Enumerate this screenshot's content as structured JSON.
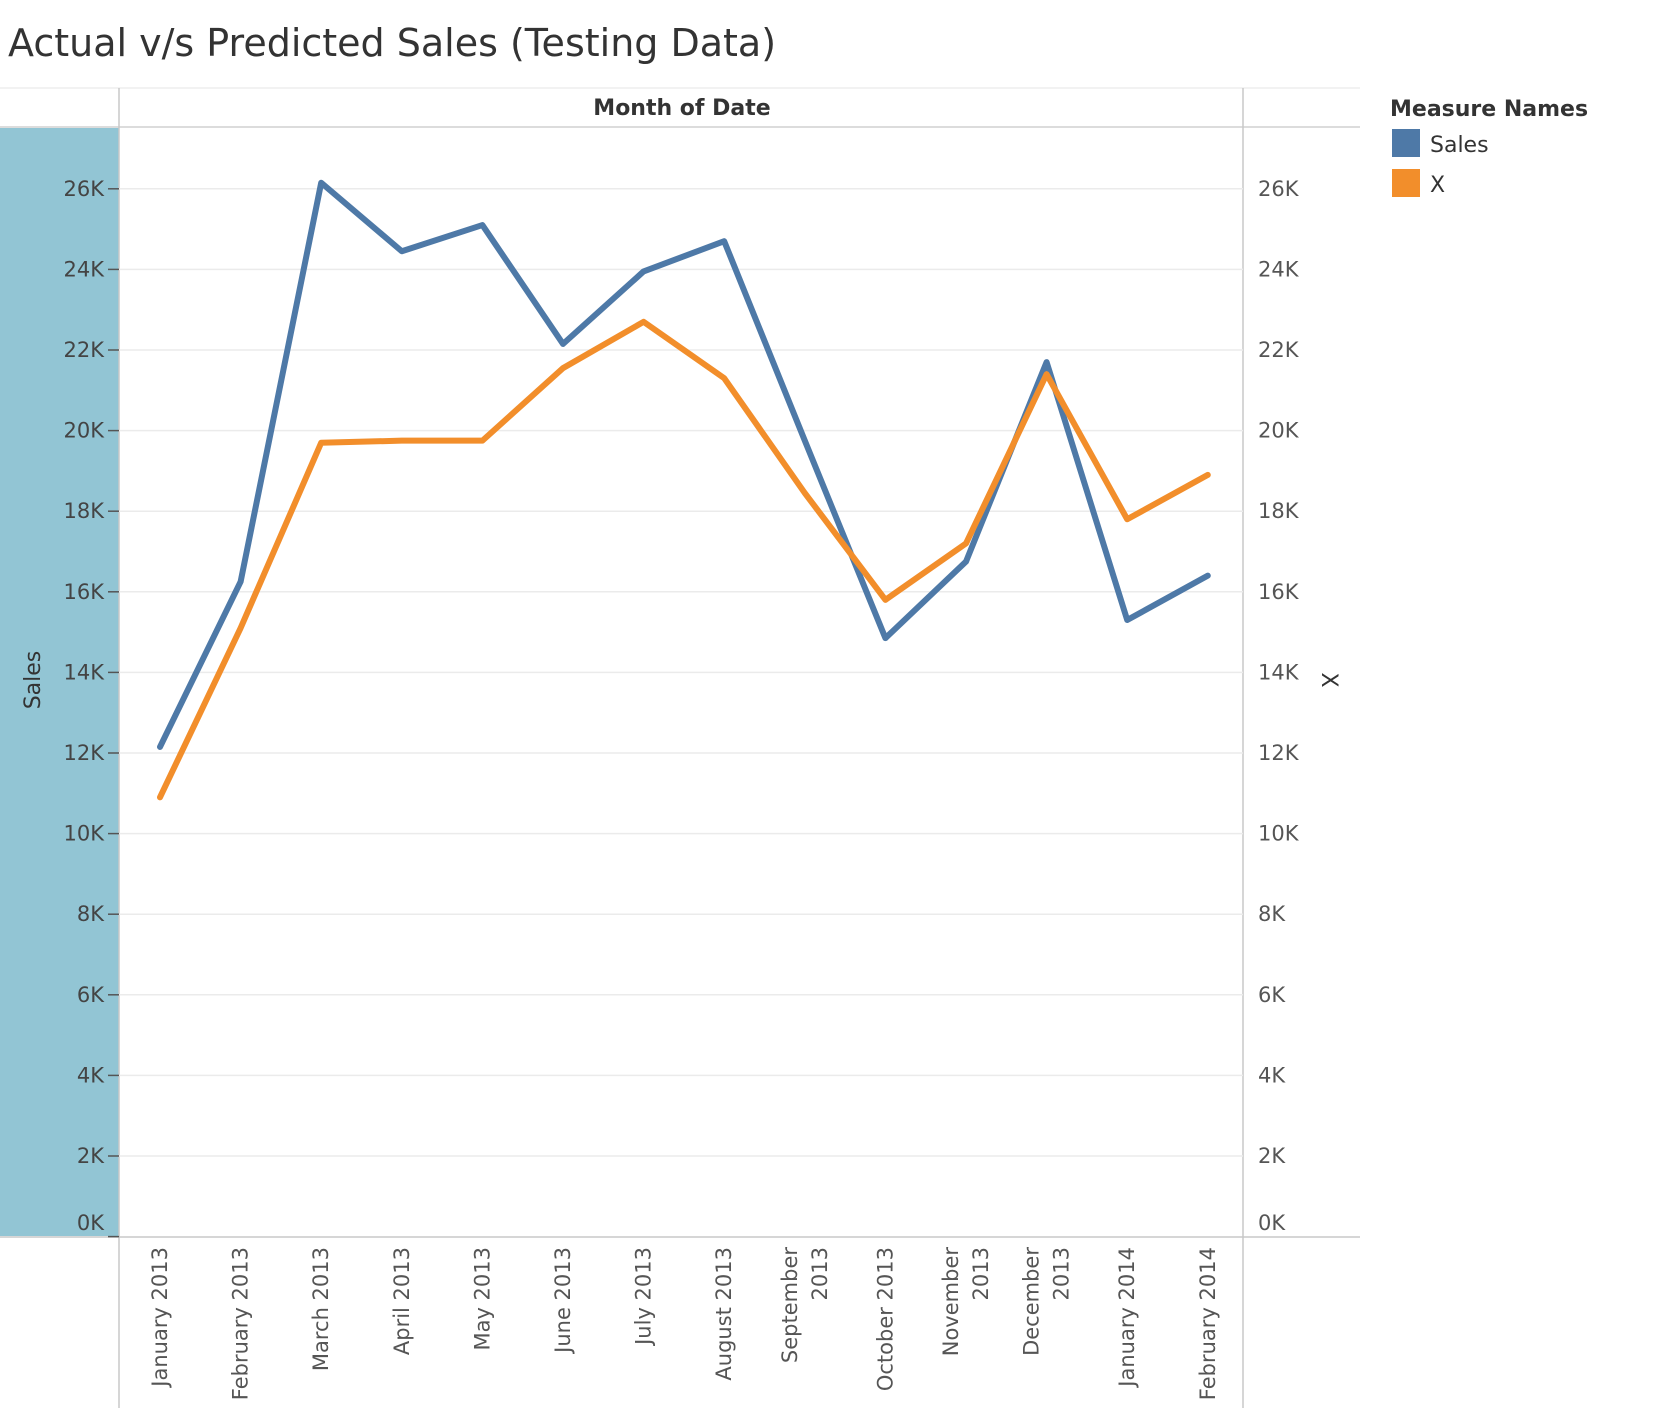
{
  "chart_data": {
    "type": "line",
    "title": "Actual v/s Predicted Sales (Testing Data)",
    "header": "Month of Date",
    "ylabel_left": "Sales",
    "ylabel_right": "X",
    "ylim": [
      0,
      27500
    ],
    "y_ticks": [
      0,
      2000,
      4000,
      6000,
      8000,
      10000,
      12000,
      14000,
      16000,
      18000,
      20000,
      22000,
      24000,
      26000
    ],
    "y_tick_labels": [
      "0K",
      "2K",
      "4K",
      "6K",
      "8K",
      "10K",
      "12K",
      "14K",
      "16K",
      "18K",
      "20K",
      "22K",
      "24K",
      "26K"
    ],
    "categories": [
      "January 2013",
      "February 2013",
      "March 2013",
      "April 2013",
      "May 2013",
      "June 2013",
      "July 2013",
      "August 2013",
      "September 2013",
      "October 2013",
      "November 2013",
      "December 2013",
      "January 2014",
      "February 2014"
    ],
    "x_label_lines": [
      [
        "January 2013"
      ],
      [
        "February 2013"
      ],
      [
        "March 2013"
      ],
      [
        "April 2013"
      ],
      [
        "May 2013"
      ],
      [
        "June 2013"
      ],
      [
        "July 2013"
      ],
      [
        "August 2013"
      ],
      [
        "September",
        "2013"
      ],
      [
        "October 2013"
      ],
      [
        "November",
        "2013"
      ],
      [
        "December",
        "2013"
      ],
      [
        "January 2014"
      ],
      [
        "February 2014"
      ]
    ],
    "series": [
      {
        "name": "Sales",
        "color": "#4e79a7",
        "values": [
          12150,
          16250,
          26150,
          24450,
          25100,
          22150,
          23950,
          24700,
          19750,
          14850,
          16750,
          21700,
          15300,
          16400
        ]
      },
      {
        "name": "X",
        "color": "#f28e2b",
        "values": [
          10900,
          15100,
          19700,
          19750,
          19750,
          21550,
          22700,
          21300,
          18450,
          15800,
          17200,
          21400,
          17800,
          18900
        ]
      }
    ],
    "legend": {
      "title": "Measure Names",
      "position": "right"
    },
    "grid": true
  },
  "colors": {
    "axis_panel": "#92c5d4",
    "gridline": "#ebebeb",
    "border": "#c8c8c8"
  }
}
